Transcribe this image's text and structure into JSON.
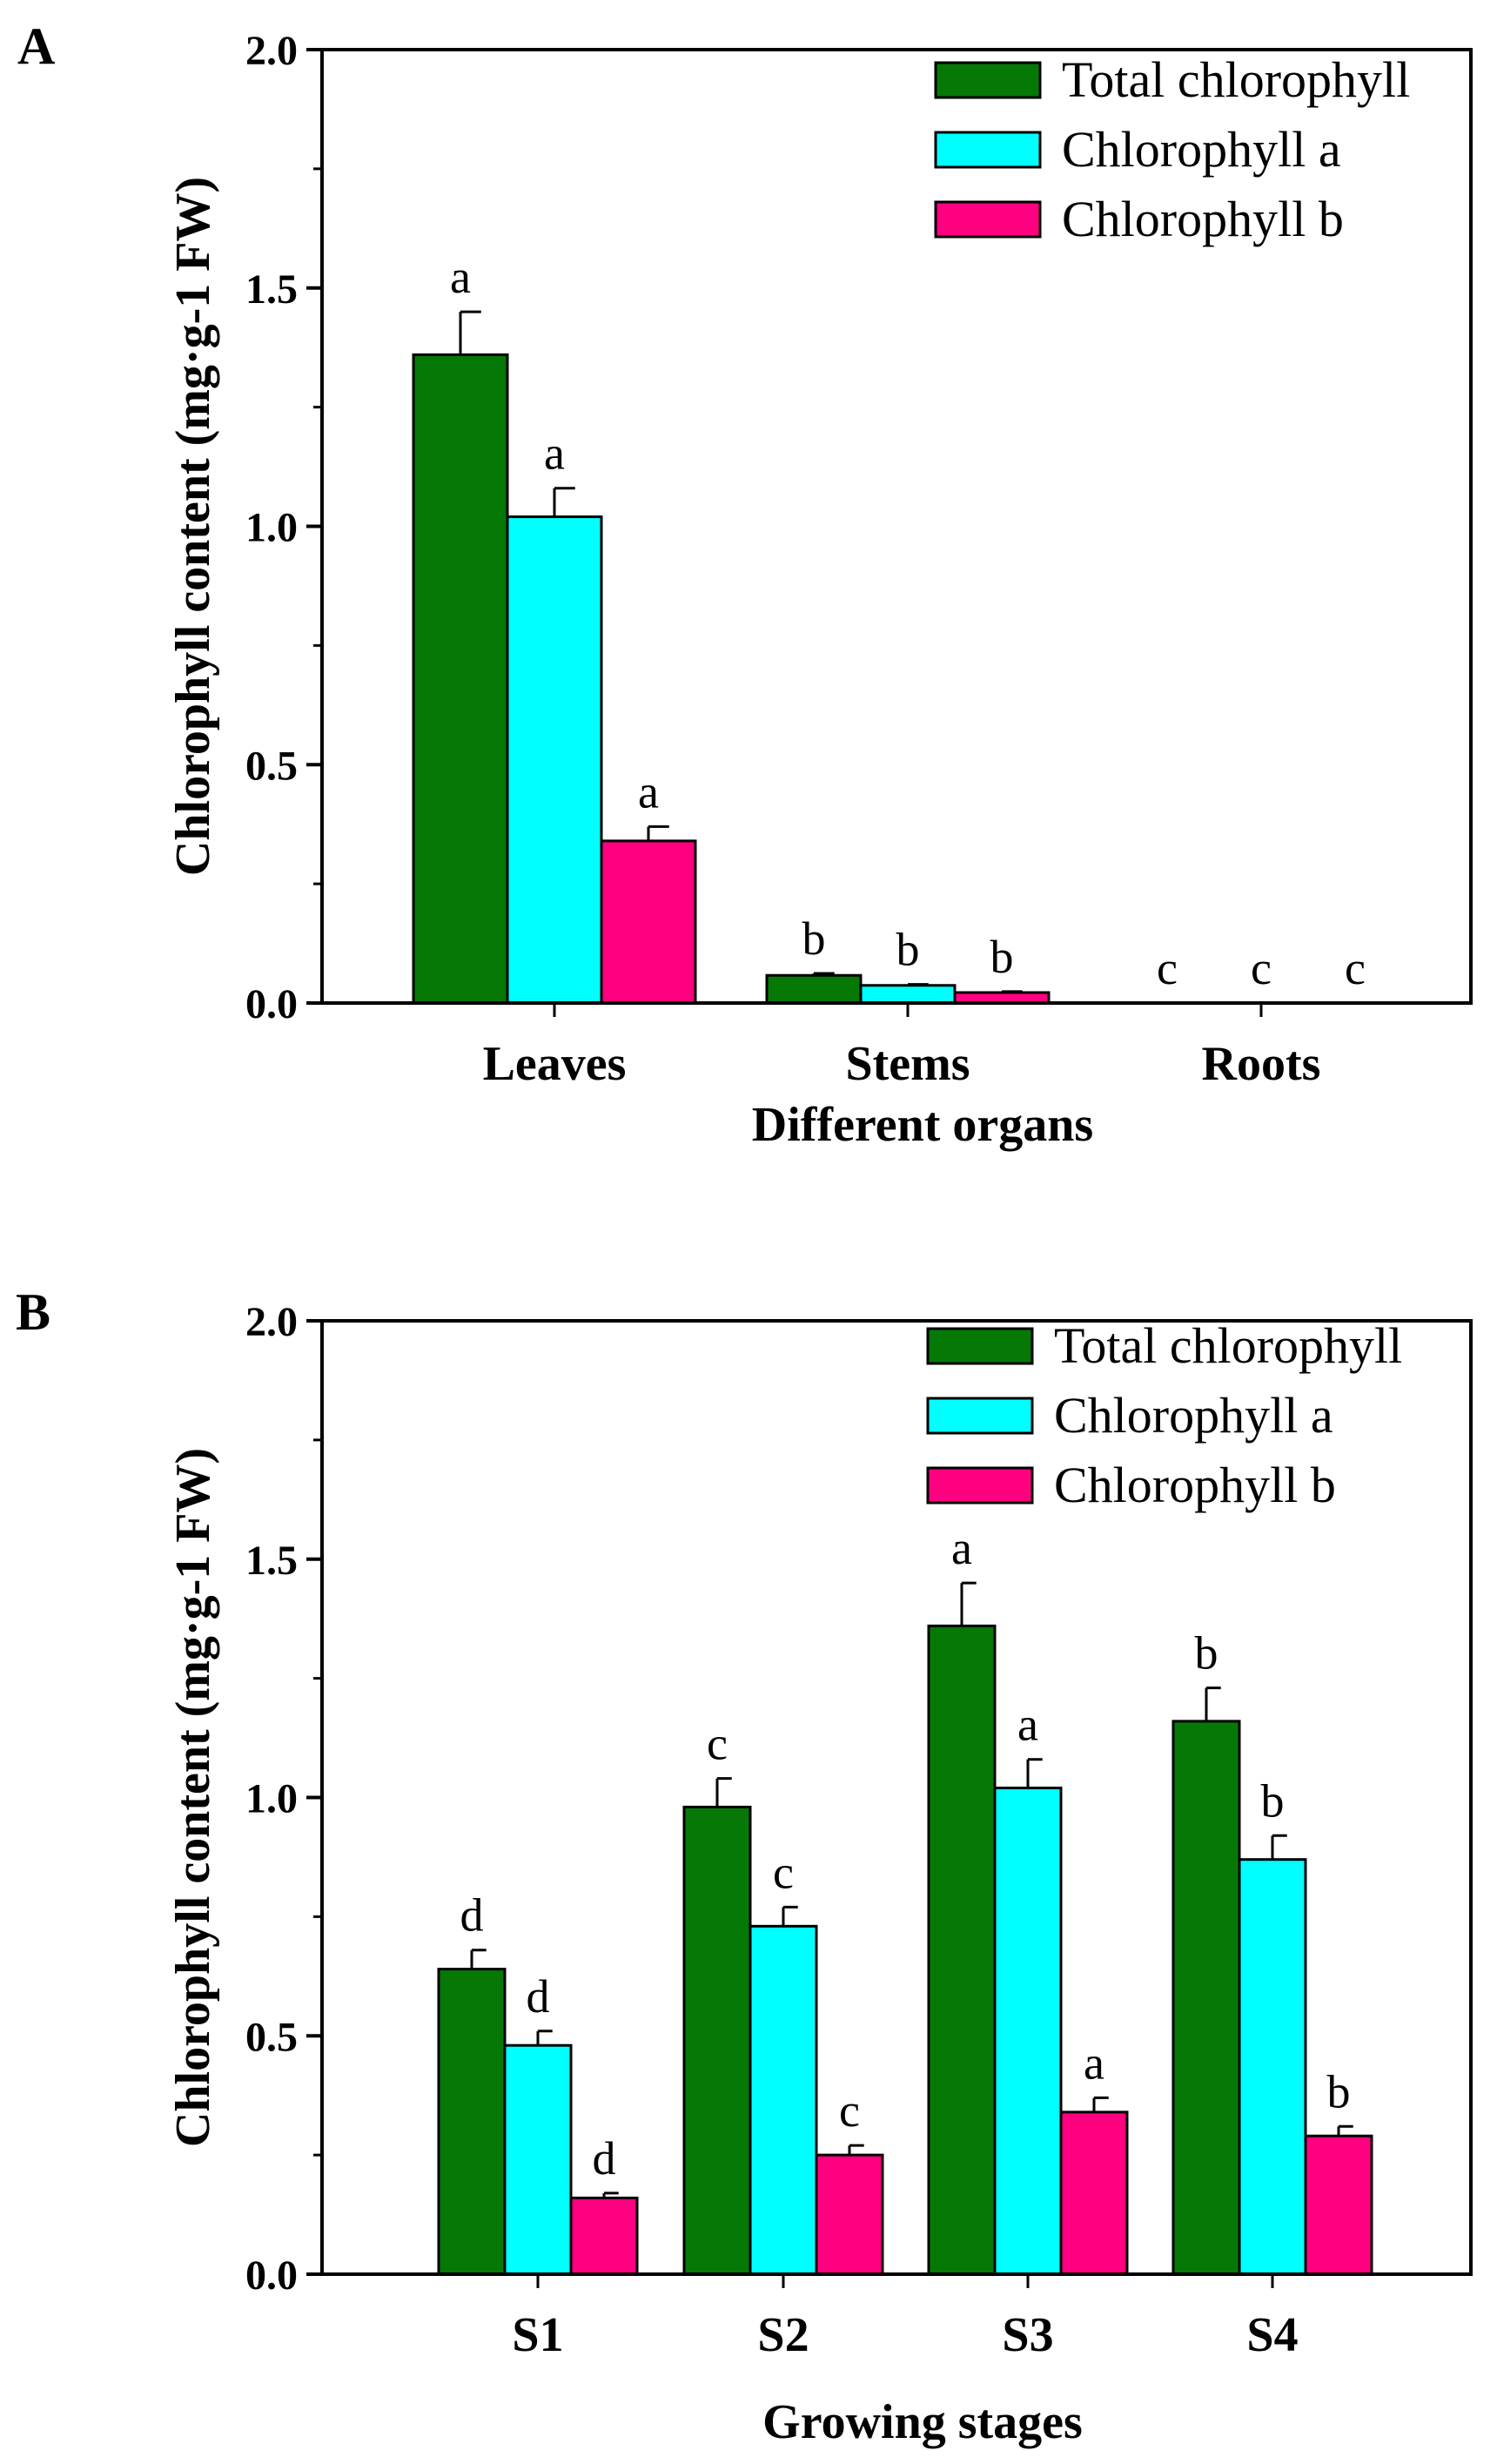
{
  "chart_data": [
    {
      "panel": "A",
      "type": "bar",
      "title": "",
      "xlabel": "Different organs",
      "ylabel": "Chlorophyll content (mg·g-1 FW)",
      "ylim": [
        0,
        2.0
      ],
      "yticks": [
        "0.0",
        "0.5",
        "1.0",
        "1.5",
        "2.0"
      ],
      "ytick_values": [
        0,
        0.5,
        1.0,
        1.5,
        2.0
      ],
      "grid": false,
      "legend_position": "top-right",
      "categories": [
        "Leaves",
        "Stems",
        "Roots"
      ],
      "series": [
        {
          "name": "Total chlorophyll",
          "color": "#067806",
          "values": [
            1.36,
            0.058,
            0
          ],
          "errors": [
            0.09,
            0.004,
            0
          ],
          "letters": [
            "a",
            "b",
            "c"
          ]
        },
        {
          "name": "Chlorophyll a",
          "color": "#00ffff",
          "values": [
            1.02,
            0.037,
            0
          ],
          "errors": [
            0.06,
            0.002,
            0
          ],
          "letters": [
            "a",
            "b",
            "c"
          ]
        },
        {
          "name": "Chlorophyll b",
          "color": "#ff0080",
          "values": [
            0.34,
            0.022,
            0
          ],
          "errors": [
            0.03,
            0.002,
            0
          ],
          "letters": [
            "a",
            "b",
            "c"
          ]
        }
      ]
    },
    {
      "panel": "B",
      "type": "bar",
      "title": "",
      "xlabel": "Growing stages",
      "ylabel": "Chlorophyll content (mg·g-1 FW)",
      "ylim": [
        0,
        2.0
      ],
      "yticks": [
        "0.0",
        "0.5",
        "1.0",
        "1.5",
        "2.0"
      ],
      "ytick_values": [
        0,
        0.5,
        1.0,
        1.5,
        2.0
      ],
      "grid": false,
      "legend_position": "top-right",
      "categories": [
        "S1",
        "S2",
        "S3",
        "S4"
      ],
      "series": [
        {
          "name": "Total chlorophyll",
          "color": "#067806",
          "values": [
            0.64,
            0.98,
            1.36,
            1.16
          ],
          "errors": [
            0.04,
            0.06,
            0.09,
            0.07
          ],
          "letters": [
            "d",
            "c",
            "a",
            "b"
          ]
        },
        {
          "name": "Chlorophyll a",
          "color": "#00ffff",
          "values": [
            0.48,
            0.73,
            1.02,
            0.87
          ],
          "errors": [
            0.03,
            0.04,
            0.06,
            0.05
          ],
          "letters": [
            "d",
            "c",
            "a",
            "b"
          ]
        },
        {
          "name": "Chlorophyll b",
          "color": "#ff0080",
          "values": [
            0.16,
            0.25,
            0.34,
            0.29
          ],
          "errors": [
            0.01,
            0.02,
            0.03,
            0.02
          ],
          "letters": [
            "d",
            "c",
            "a",
            "b"
          ]
        }
      ]
    }
  ]
}
